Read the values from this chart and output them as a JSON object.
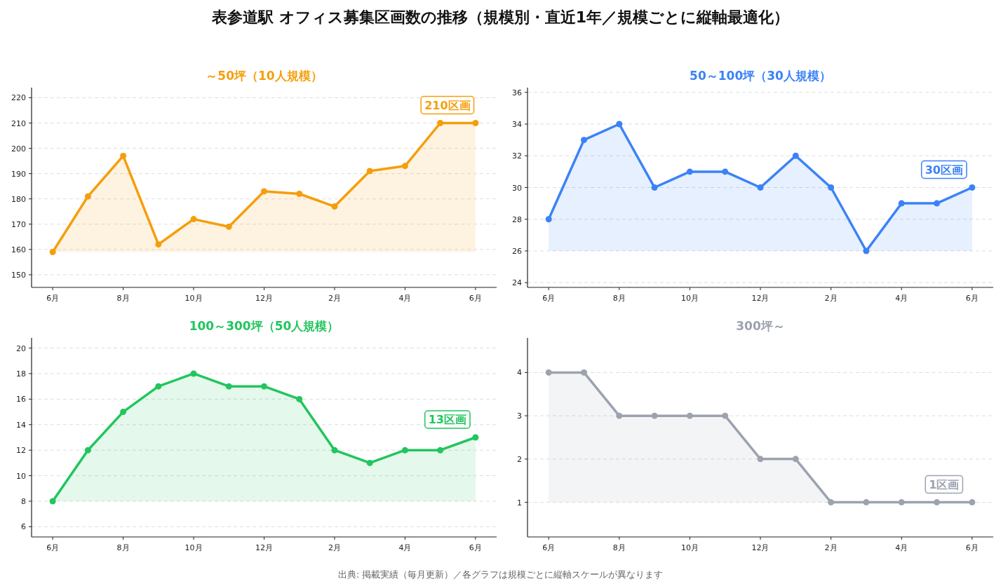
{
  "chart_data": [
    {
      "type": "area",
      "title": "～50坪（10人規模）",
      "categories": [
        "6月",
        null,
        "8月",
        null,
        "10月",
        null,
        "12月",
        null,
        "2月",
        null,
        "4月",
        null,
        "6月"
      ],
      "series": [
        {
          "color": "#f59e0b",
          "values": [
            159,
            181,
            197,
            162,
            172,
            169,
            183,
            182,
            177,
            191,
            193,
            210,
            210
          ]
        }
      ],
      "ylim": [
        145,
        224
      ],
      "yticks": [
        150,
        160,
        170,
        180,
        190,
        200,
        210,
        220
      ],
      "grid": "y",
      "marker": "circle",
      "annotations": [
        "表参道駅 オフィス募集区画数の推移（規模別・直近1年／規模ごとに縦軸最適化）",
        "210区画",
        "出典: 掲載実績（毎月更新）／各グラフは規模ごとに縦軸スケールが異なります"
      ]
    },
    {
      "type": "area",
      "title": "50～100坪（30人規模）",
      "categories": [
        "6月",
        null,
        "8月",
        null,
        "10月",
        null,
        "12月",
        null,
        "2月",
        null,
        "4月",
        null,
        "6月"
      ],
      "series": [
        {
          "color": "#3b82f6",
          "values": [
            28,
            33,
            34,
            30,
            31,
            31,
            30,
            32,
            30,
            26,
            29,
            29,
            30
          ]
        }
      ],
      "ylim": [
        23.7,
        36.3
      ],
      "yticks": [
        24,
        26,
        28,
        30,
        32,
        34,
        36
      ],
      "grid": "y",
      "marker": "circle",
      "annotations": [
        "30区画"
      ]
    },
    {
      "type": "area",
      "title": "100～300坪（50人規模）",
      "categories": [
        "6月",
        null,
        "8月",
        null,
        "10月",
        null,
        "12月",
        null,
        "2月",
        null,
        "4月",
        null,
        "6月"
      ],
      "series": [
        {
          "color": "#22c55e",
          "values": [
            8,
            12,
            15,
            17,
            18,
            17,
            17,
            16,
            12,
            11,
            12,
            12,
            13
          ]
        }
      ],
      "ylim": [
        5.2,
        20.8
      ],
      "yticks": [
        6,
        8,
        10,
        12,
        14,
        16,
        18,
        20
      ],
      "grid": "y",
      "marker": "circle",
      "annotations": [
        "13区画"
      ]
    },
    {
      "type": "area",
      "title": "300坪～",
      "categories": [
        "6月",
        null,
        "8月",
        null,
        "10月",
        null,
        "12月",
        null,
        "2月",
        null,
        "4月",
        null,
        "6月"
      ],
      "series": [
        {
          "color": "#9ca3af",
          "values": [
            4,
            4,
            3,
            3,
            3,
            3,
            2,
            2,
            1,
            1,
            1,
            1,
            1
          ]
        }
      ],
      "ylim": [
        0.2,
        4.8
      ],
      "yticks": [
        1,
        2,
        3,
        4
      ],
      "grid": "y",
      "marker": "circle",
      "annotations": [
        "1区画"
      ]
    }
  ]
}
